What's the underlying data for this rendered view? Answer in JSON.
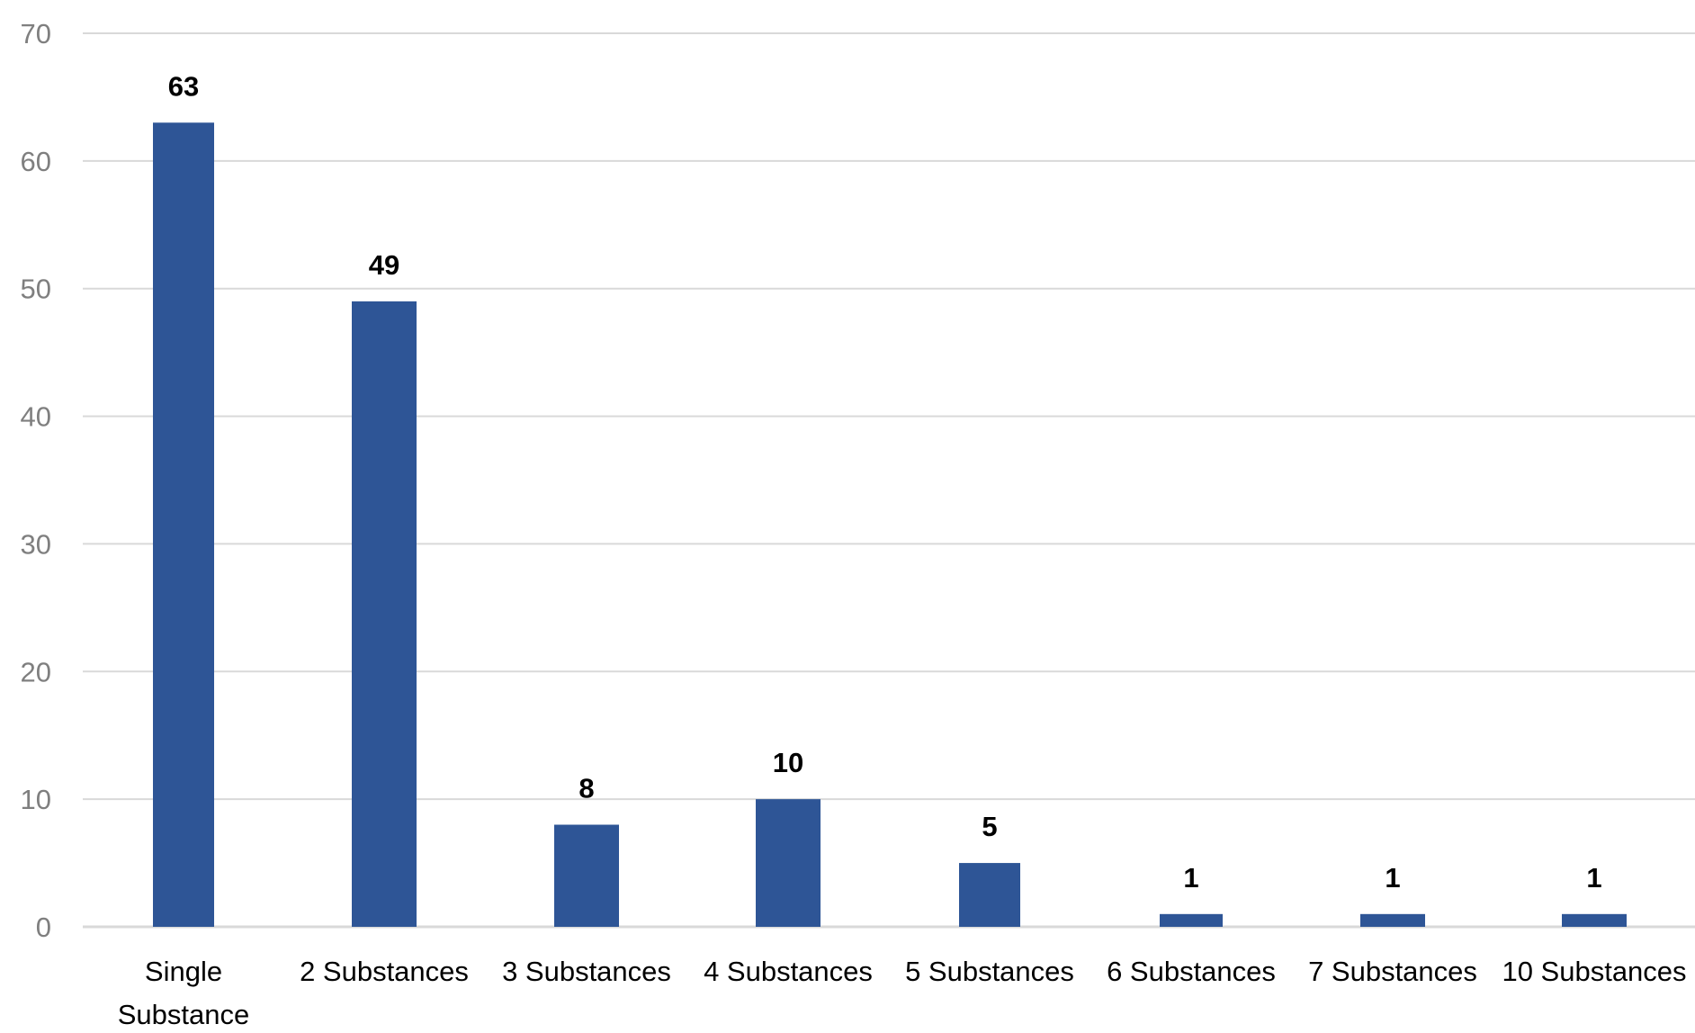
{
  "chart_data": {
    "type": "bar",
    "categories": [
      "Single Substance",
      "2 Substances",
      "3 Substances",
      "4 Substances",
      "5 Substances",
      "6 Substances",
      "7 Substances",
      "10 Substances"
    ],
    "category_lines": [
      [
        "Single",
        "Substance"
      ],
      [
        "2 Substances"
      ],
      [
        "3 Substances"
      ],
      [
        "4 Substances"
      ],
      [
        "5 Substances"
      ],
      [
        "6 Substances"
      ],
      [
        "7 Substances"
      ],
      [
        "10 Substances"
      ]
    ],
    "values": [
      63,
      49,
      8,
      10,
      5,
      1,
      1,
      1
    ],
    "title": "",
    "xlabel": "",
    "ylabel": "",
    "ylim": [
      0,
      70
    ],
    "yticks": [
      0,
      10,
      20,
      30,
      40,
      50,
      60,
      70
    ],
    "grid": true,
    "legend": "none",
    "data_labels": true,
    "bar_color": "#2e5596"
  }
}
